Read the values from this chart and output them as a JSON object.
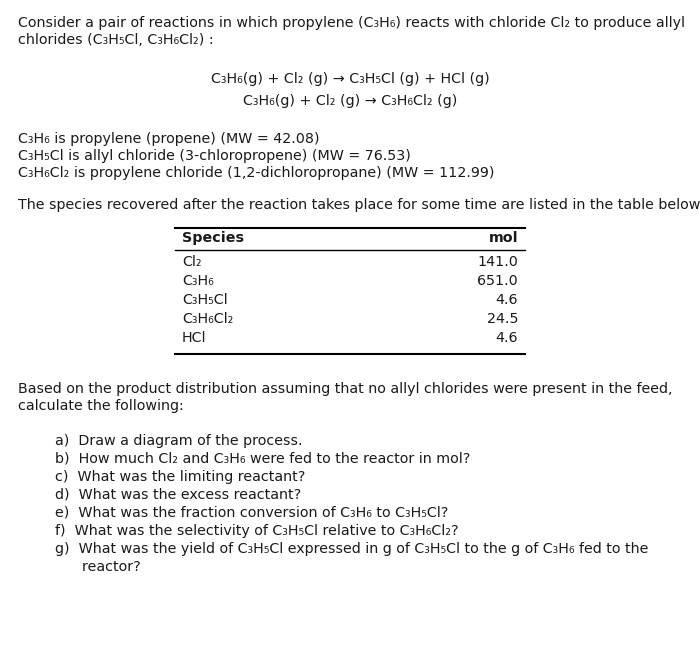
{
  "bg_color": "#ffffff",
  "title_line1": "Consider a pair of reactions in which propylene (C₃H₆) reacts with chloride Cl₂ to produce allyl",
  "title_line2": "chlorides (C₃H₅Cl, C₃H₆Cl₂) :",
  "reaction1": "C₃H₆(g) + Cl₂ (g) → C₃H₅Cl (g) + HCl (g)",
  "reaction2": "C₃H₆(g) + Cl₂ (g) → C₃H₆Cl₂ (g)",
  "def1": "C₃H₆ is propylene (propene) (MW = 42.08)",
  "def2": "C₃H₅Cl is allyl chloride (3-chloropropene) (MW = 76.53)",
  "def3": "C₃H₆Cl₂ is propylene chloride (1,2-dichloropropane) (MW = 112.99)",
  "table_intro": "The species recovered after the reaction takes place for some time are listed in the table below.",
  "table_headers": [
    "Species",
    "mol"
  ],
  "table_rows": [
    [
      "Cl₂",
      "141.0"
    ],
    [
      "C₃H₆",
      "651.0"
    ],
    [
      "C₃H₅Cl",
      "4.6"
    ],
    [
      "C₃H₆Cl₂",
      "24.5"
    ],
    [
      "HCl",
      "4.6"
    ]
  ],
  "based_line1": "Based on the product distribution assuming that no allyl chlorides were present in the feed,",
  "based_line2": "calculate the following:",
  "questions": [
    "a)  Draw a diagram of the process.",
    "b)  How much Cl₂ and C₃H₆ were fed to the reactor in mol?",
    "c)  What was the limiting reactant?",
    "d)  What was the excess reactant?",
    "e)  What was the fraction conversion of C₃H₆ to C₃H₅Cl?",
    "f)  What was the selectivity of C₃H₅Cl relative to C₃H₆Cl₂?",
    "g)  What was the yield of C₃H₅Cl expressed in g of C₃H₅Cl to the g of C₃H₆ fed to the",
    "      reactor?"
  ],
  "text_color": "#1a1a1a",
  "font_size": 10.3
}
